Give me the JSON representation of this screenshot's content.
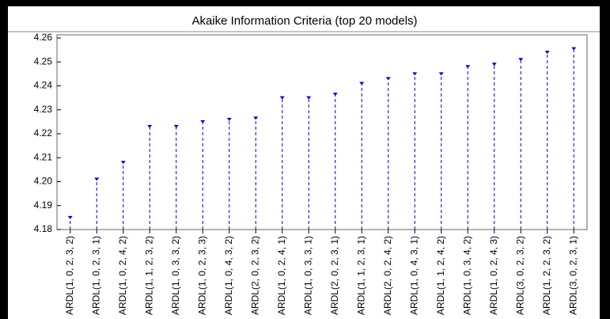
{
  "chart_data": {
    "type": "stem",
    "title": "Akaike Information Criteria (top 20 models)",
    "categories": [
      "ARDL(1, 0, 2, 3, 2)",
      "ARDL(1, 0, 2, 3, 1)",
      "ARDL(1, 0, 2, 4, 2)",
      "ARDL(1, 1, 2, 3, 2)",
      "ARDL(1, 0, 3, 3, 2)",
      "ARDL(1, 0, 2, 3, 3)",
      "ARDL(1, 0, 4, 3, 2)",
      "ARDL(2, 0, 2, 3, 2)",
      "ARDL(1, 0, 2, 4, 1)",
      "ARDL(1, 0, 3, 3, 1)",
      "ARDL(2, 0, 2, 3, 1)",
      "ARDL(1, 1, 2, 3, 1)",
      "ARDL(2, 0, 2, 4, 2)",
      "ARDL(1, 0, 4, 3, 1)",
      "ARDL(1, 1, 2, 4, 2)",
      "ARDL(1, 0, 3, 4, 2)",
      "ARDL(1, 0, 2, 4, 3)",
      "ARDL(3, 0, 2, 3, 2)",
      "ARDL(1, 2, 2, 3, 2)",
      "ARDL(3, 0, 2, 3, 1)"
    ],
    "values": [
      4.185,
      4.201,
      4.208,
      4.223,
      4.223,
      4.225,
      4.226,
      4.2265,
      4.235,
      4.235,
      4.2365,
      4.241,
      4.243,
      4.245,
      4.245,
      4.248,
      4.249,
      4.251,
      4.254,
      4.2555
    ],
    "color": "#0000cc",
    "ylim": [
      4.18,
      4.26
    ],
    "yticks": [
      4.18,
      4.19,
      {
        "value": 4.2,
        "label": "4.20"
      },
      4.21,
      4.22,
      4.23,
      4.24,
      4.25,
      4.26
    ]
  }
}
